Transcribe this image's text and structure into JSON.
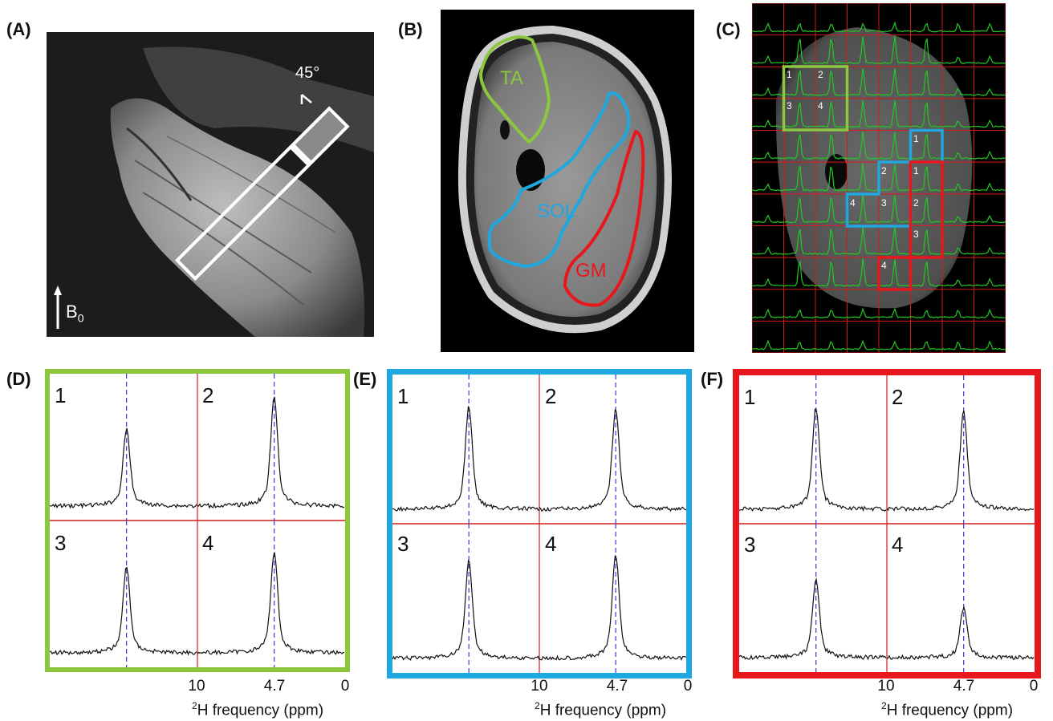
{
  "panels": {
    "a": {
      "label": "(A)",
      "angle_label": "45°",
      "field_label": "B",
      "field_sub": "0"
    },
    "b": {
      "label": "(B)",
      "roi_ta": "TA",
      "roi_sol": "SOL",
      "roi_gm": "GM"
    },
    "c": {
      "label": "(C)",
      "green_voxels": [
        "1",
        "2",
        "3",
        "4"
      ],
      "blue_voxels": [
        "1",
        "2",
        "3",
        "4"
      ],
      "red_voxels": [
        "1",
        "2",
        "3",
        "4"
      ]
    },
    "d": {
      "label": "(D)",
      "cells": [
        "1",
        "2",
        "3",
        "4"
      ]
    },
    "e": {
      "label": "(E)",
      "cells": [
        "1",
        "2",
        "3",
        "4"
      ]
    },
    "f": {
      "label": "(F)",
      "cells": [
        "1",
        "2",
        "3",
        "4"
      ]
    }
  },
  "axis": {
    "ticks": [
      "10",
      "4.7",
      "0"
    ],
    "label_sup": "2",
    "label_text": "H frequency (ppm)"
  },
  "colors": {
    "green": "#8dc63f",
    "blue": "#1fa7e0",
    "red": "#e8171b",
    "grid_red": "#d61a1a",
    "spectrum_green": "#22c922",
    "dashed_blue": "#3b3bd6"
  },
  "spectra": {
    "d": [
      0.62,
      0.88,
      0.7,
      0.82
    ],
    "e": [
      0.82,
      0.8,
      0.78,
      0.82
    ],
    "f": [
      0.82,
      0.78,
      0.62,
      0.4
    ]
  }
}
